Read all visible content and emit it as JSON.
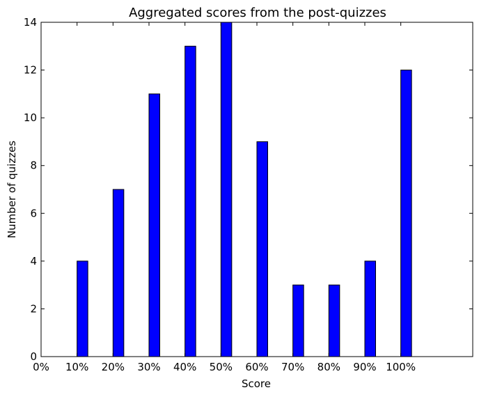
{
  "chart_data": {
    "type": "bar",
    "title": "Aggregated scores from the post-quizzes",
    "xlabel": "Score",
    "ylabel": "Number of quizzes",
    "categories": [
      "0%",
      "10%",
      "20%",
      "30%",
      "40%",
      "50%",
      "60%",
      "70%",
      "80%",
      "90%",
      "100%"
    ],
    "values": [
      0,
      4,
      7,
      11,
      13,
      14,
      9,
      3,
      3,
      4,
      12
    ],
    "ylim": [
      0,
      14
    ],
    "yticks": [
      0,
      2,
      4,
      6,
      8,
      10,
      12,
      14
    ],
    "bar_color": "#0000ff",
    "edge_color": "#000000",
    "grid": false,
    "legend": "none"
  }
}
